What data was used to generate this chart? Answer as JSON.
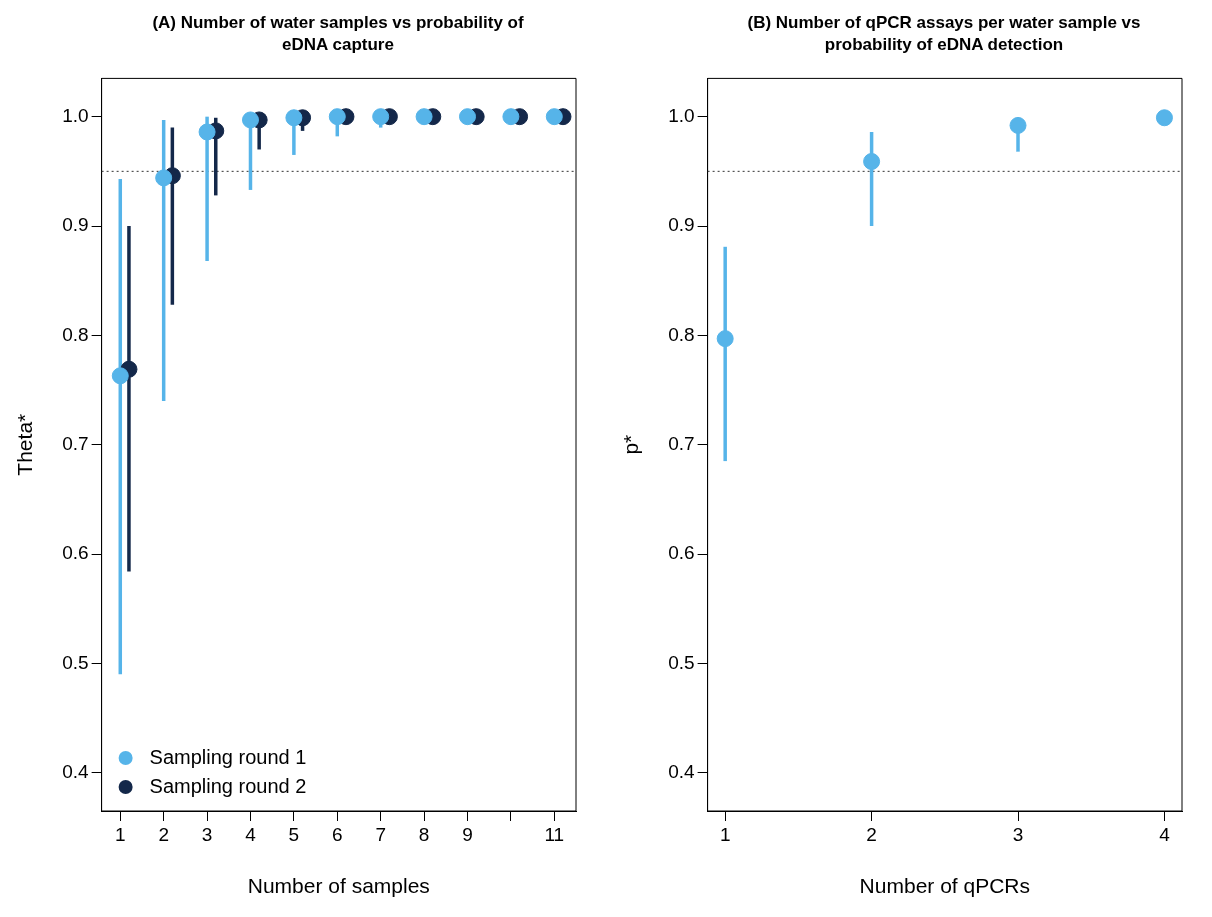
{
  "chart_data": [
    {
      "type": "scatter",
      "title": "(A) Number of water samples vs probability of eDNA capture",
      "xlabel": "Number of samples",
      "ylabel": "Theta*",
      "xlim": [
        0.57,
        11.5
      ],
      "xticks": [
        1,
        2,
        3,
        4,
        5,
        6,
        7,
        8,
        9,
        {
          "value": 10,
          "label": null
        },
        11
      ],
      "ylim": [
        0.365,
        1.035
      ],
      "yticks": [
        0.4,
        0.5,
        0.6,
        0.7,
        0.8,
        0.9,
        {
          "value": 1,
          "label": "1.0"
        }
      ],
      "marker": "circle",
      "legend": "bottom left",
      "grid": false,
      "ref_lines": [
        {
          "axis": "y",
          "value": 0.95,
          "line_style": "dotted",
          "color": "#333333"
        }
      ],
      "series": [
        {
          "name": "Sampling round 1",
          "color": "#56b4e9",
          "x": [
            1,
            2,
            3,
            4,
            5,
            6,
            7,
            8,
            9,
            10,
            11
          ],
          "values": [
            0.763,
            0.944,
            0.986,
            0.997,
            0.999,
            1.0,
            1.0,
            1.0,
            1.0,
            1.0,
            1.0
          ],
          "errors": [
            [
              0.49,
              0.943
            ],
            [
              0.74,
              0.997
            ],
            [
              0.868,
              1.0
            ],
            [
              0.933,
              0.997
            ],
            [
              0.965,
              0.999
            ],
            [
              0.982,
              1.0
            ],
            [
              0.99,
              1.0
            ],
            null,
            null,
            null,
            null
          ]
        },
        {
          "name": "Sampling round 2",
          "color": "#14284a",
          "x": [
            1.2,
            2.2,
            3.2,
            4.2,
            5.2,
            6.2,
            7.2,
            8.2,
            9.2,
            10.2,
            11.2
          ],
          "values": [
            0.769,
            0.946,
            0.987,
            0.997,
            0.999,
            1.0,
            1.0,
            1.0,
            1.0,
            1.0,
            1.0
          ],
          "errors": [
            [
              0.584,
              0.9
            ],
            [
              0.828,
              0.99
            ],
            [
              0.928,
              0.999
            ],
            [
              0.97,
              0.997
            ],
            [
              0.987,
              0.999
            ],
            null,
            null,
            null,
            null,
            null,
            null
          ]
        }
      ]
    },
    {
      "type": "scatter",
      "title": "(B) Number of qPCR assays per water sample vs probability of eDNA detection",
      "xlabel": "Number of qPCRs",
      "ylabel": "p*",
      "xlim": [
        0.88,
        4.12
      ],
      "xticks": [
        1,
        2,
        3,
        4
      ],
      "ylim": [
        0.365,
        1.035
      ],
      "yticks": [
        0.4,
        0.5,
        0.6,
        0.7,
        0.8,
        0.9,
        {
          "value": 1,
          "label": "1.0"
        }
      ],
      "marker": "circle",
      "grid": false,
      "ref_lines": [
        {
          "axis": "y",
          "value": 0.95,
          "line_style": "dotted",
          "color": "#333333"
        }
      ],
      "series": [
        {
          "color": "#56b4e9",
          "x": [
            1,
            2,
            3,
            4
          ],
          "values": [
            0.797,
            0.959,
            0.992,
            0.999
          ],
          "errors": [
            [
              0.685,
              0.881
            ],
            [
              0.9,
              0.986
            ],
            [
              0.968,
              0.992
            ],
            null
          ]
        }
      ]
    }
  ]
}
